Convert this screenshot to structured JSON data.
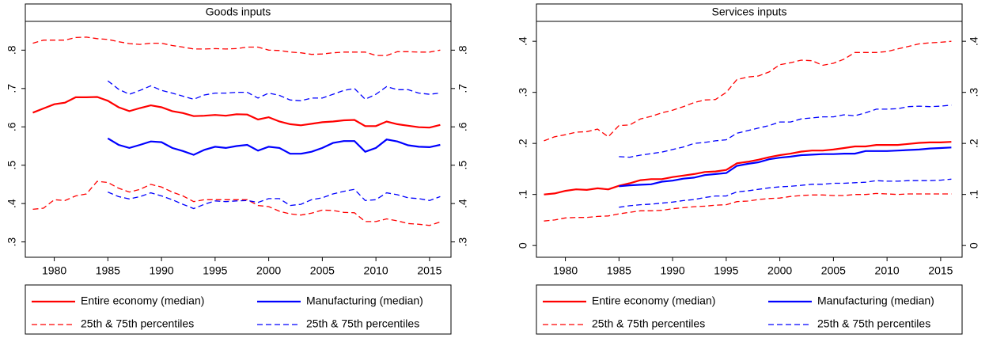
{
  "chart_data": [
    {
      "type": "line",
      "title": "Goods inputs",
      "x": [
        1978,
        1979,
        1980,
        1981,
        1982,
        1983,
        1984,
        1985,
        1986,
        1987,
        1988,
        1989,
        1990,
        1991,
        1992,
        1993,
        1994,
        1995,
        1996,
        1997,
        1998,
        1999,
        2000,
        2001,
        2002,
        2003,
        2004,
        2005,
        2006,
        2007,
        2008,
        2009,
        2010,
        2011,
        2012,
        2013,
        2014,
        2015,
        2016
      ],
      "xlim": [
        1977.3,
        2017
      ],
      "xticks": [
        1980,
        1985,
        1990,
        1995,
        2000,
        2005,
        2010,
        2015
      ],
      "ylim": [
        0.26,
        0.875
      ],
      "yticks": [
        {
          "value": 0.3,
          "label": ".3"
        },
        {
          "value": 0.4,
          "label": ".4"
        },
        {
          "value": 0.5,
          "label": ".5"
        },
        {
          "value": 0.6,
          "label": ".6"
        },
        {
          "value": 0.7,
          "label": ".7"
        },
        {
          "value": 0.8,
          "label": ".8"
        }
      ],
      "series": [
        {
          "name": "Entire economy (median)",
          "color": "#ff0000",
          "values": [
            0.637,
            0.648,
            0.659,
            0.663,
            0.677,
            0.677,
            0.678,
            0.668,
            0.651,
            0.641,
            0.649,
            0.656,
            0.651,
            0.641,
            0.636,
            0.628,
            0.629,
            0.631,
            0.629,
            0.633,
            0.632,
            0.619,
            0.625,
            0.614,
            0.607,
            0.604,
            0.608,
            0.612,
            0.614,
            0.617,
            0.618,
            0.602,
            0.602,
            0.614,
            0.607,
            0.603,
            0.599,
            0.598,
            0.605
          ]
        },
        {
          "name": "Manufacturing (median)",
          "color": "#0000ff",
          "values": [
            null,
            null,
            null,
            null,
            null,
            null,
            null,
            0.57,
            0.553,
            0.545,
            0.553,
            0.562,
            0.56,
            0.545,
            0.537,
            0.527,
            0.54,
            0.548,
            0.545,
            0.55,
            0.553,
            0.538,
            0.548,
            0.545,
            0.53,
            0.53,
            0.535,
            0.545,
            0.558,
            0.563,
            0.563,
            0.535,
            0.545,
            0.567,
            0.562,
            0.552,
            0.548,
            0.547,
            0.553
          ]
        },
        {
          "name": "25th & 75th percentiles",
          "color": "#ff0000",
          "dashed": true,
          "values": [
            0.385,
            0.388,
            0.41,
            0.408,
            0.42,
            0.425,
            0.458,
            0.455,
            0.44,
            0.43,
            0.437,
            0.45,
            0.443,
            0.43,
            0.42,
            0.405,
            0.41,
            0.41,
            0.41,
            0.41,
            0.41,
            0.395,
            0.392,
            0.38,
            0.373,
            0.37,
            0.375,
            0.383,
            0.382,
            0.377,
            0.376,
            0.353,
            0.353,
            0.36,
            0.355,
            0.348,
            0.346,
            0.343,
            0.352
          ],
          "values_upper": [
            0.818,
            0.826,
            0.826,
            0.826,
            0.833,
            0.834,
            0.83,
            0.828,
            0.822,
            0.817,
            0.815,
            0.818,
            0.818,
            0.812,
            0.808,
            0.803,
            0.803,
            0.804,
            0.803,
            0.804,
            0.808,
            0.808,
            0.8,
            0.799,
            0.795,
            0.793,
            0.789,
            0.79,
            0.793,
            0.795,
            0.795,
            0.795,
            0.786,
            0.786,
            0.796,
            0.796,
            0.795,
            0.795,
            0.8
          ]
        },
        {
          "name": "25th & 75th percentiles",
          "color": "#0000ff",
          "dashed": true,
          "values": [
            null,
            null,
            null,
            null,
            null,
            null,
            null,
            0.43,
            0.418,
            0.412,
            0.418,
            0.428,
            0.42,
            0.41,
            0.398,
            0.387,
            0.398,
            0.407,
            0.405,
            0.407,
            0.408,
            0.403,
            0.413,
            0.413,
            0.395,
            0.398,
            0.41,
            0.415,
            0.425,
            0.432,
            0.437,
            0.408,
            0.41,
            0.428,
            0.423,
            0.415,
            0.413,
            0.408,
            0.418
          ],
          "values_upper": [
            null,
            null,
            null,
            null,
            null,
            null,
            null,
            0.72,
            0.698,
            0.685,
            0.695,
            0.707,
            0.695,
            0.688,
            0.68,
            0.672,
            0.683,
            0.688,
            0.688,
            0.69,
            0.69,
            0.675,
            0.688,
            0.682,
            0.67,
            0.668,
            0.675,
            0.675,
            0.685,
            0.695,
            0.7,
            0.672,
            0.685,
            0.705,
            0.697,
            0.697,
            0.688,
            0.685,
            0.688
          ]
        }
      ]
    },
    {
      "type": "line",
      "title": "Services inputs",
      "x": [
        1978,
        1979,
        1980,
        1981,
        1982,
        1983,
        1984,
        1985,
        1986,
        1987,
        1988,
        1989,
        1990,
        1991,
        1992,
        1993,
        1994,
        1995,
        1996,
        1997,
        1998,
        1999,
        2000,
        2001,
        2002,
        2003,
        2004,
        2005,
        2006,
        2007,
        2008,
        2009,
        2010,
        2011,
        2012,
        2013,
        2014,
        2015,
        2016
      ],
      "xlim": [
        1977.3,
        2017
      ],
      "xticks": [
        1980,
        1985,
        1990,
        1995,
        2000,
        2005,
        2010,
        2015
      ],
      "ylim": [
        -0.023,
        0.439
      ],
      "yticks": [
        0,
        {
          "value": 0.1,
          "label": ".1"
        },
        {
          "value": 0.2,
          "label": ".2"
        },
        {
          "value": 0.3,
          "label": ".3"
        },
        {
          "value": 0.4,
          "label": ".4"
        }
      ],
      "series": [
        {
          "name": "Entire economy (median)",
          "color": "#ff0000",
          "values": [
            0.1,
            0.102,
            0.107,
            0.11,
            0.109,
            0.112,
            0.11,
            0.117,
            0.122,
            0.128,
            0.13,
            0.13,
            0.134,
            0.137,
            0.14,
            0.144,
            0.145,
            0.148,
            0.161,
            0.164,
            0.168,
            0.173,
            0.177,
            0.18,
            0.184,
            0.186,
            0.186,
            0.188,
            0.191,
            0.194,
            0.194,
            0.197,
            0.197,
            0.197,
            0.199,
            0.201,
            0.202,
            0.202,
            0.203
          ]
        },
        {
          "name": "Manufacturing (median)",
          "color": "#0000ff",
          "values": [
            null,
            null,
            null,
            null,
            null,
            null,
            null,
            0.116,
            0.118,
            0.119,
            0.12,
            0.125,
            0.127,
            0.131,
            0.133,
            0.138,
            0.14,
            0.142,
            0.156,
            0.16,
            0.163,
            0.169,
            0.172,
            0.174,
            0.177,
            0.178,
            0.179,
            0.179,
            0.18,
            0.18,
            0.185,
            0.185,
            0.185,
            0.186,
            0.187,
            0.188,
            0.19,
            0.191,
            0.192
          ]
        },
        {
          "name": "25th & 75th percentiles",
          "color": "#ff0000",
          "dashed": true,
          "values": [
            0.048,
            0.05,
            0.054,
            0.055,
            0.055,
            0.057,
            0.058,
            0.062,
            0.065,
            0.068,
            0.068,
            0.069,
            0.072,
            0.074,
            0.076,
            0.077,
            0.079,
            0.08,
            0.086,
            0.087,
            0.09,
            0.092,
            0.093,
            0.096,
            0.098,
            0.099,
            0.099,
            0.098,
            0.098,
            0.1,
            0.1,
            0.102,
            0.101,
            0.1,
            0.101,
            0.101,
            0.101,
            0.101,
            0.101
          ],
          "values_upper": [
            0.205,
            0.213,
            0.217,
            0.222,
            0.223,
            0.228,
            0.213,
            0.235,
            0.236,
            0.248,
            0.253,
            0.26,
            0.265,
            0.272,
            0.28,
            0.285,
            0.286,
            0.3,
            0.325,
            0.33,
            0.332,
            0.34,
            0.354,
            0.358,
            0.363,
            0.362,
            0.353,
            0.357,
            0.365,
            0.378,
            0.378,
            0.378,
            0.38,
            0.385,
            0.39,
            0.395,
            0.397,
            0.398,
            0.4
          ]
        },
        {
          "name": "25th & 75th percentiles",
          "color": "#0000ff",
          "dashed": true,
          "values": [
            null,
            null,
            null,
            null,
            null,
            null,
            null,
            0.075,
            0.078,
            0.08,
            0.081,
            0.083,
            0.085,
            0.088,
            0.09,
            0.094,
            0.097,
            0.097,
            0.105,
            0.107,
            0.11,
            0.113,
            0.115,
            0.116,
            0.118,
            0.12,
            0.12,
            0.122,
            0.122,
            0.123,
            0.124,
            0.127,
            0.126,
            0.126,
            0.127,
            0.127,
            0.127,
            0.128,
            0.13
          ],
          "values_upper": [
            null,
            null,
            null,
            null,
            null,
            null,
            null,
            0.174,
            0.173,
            0.177,
            0.18,
            0.183,
            0.188,
            0.193,
            0.2,
            0.202,
            0.205,
            0.207,
            0.22,
            0.225,
            0.23,
            0.235,
            0.242,
            0.242,
            0.248,
            0.25,
            0.252,
            0.252,
            0.256,
            0.254,
            0.26,
            0.267,
            0.267,
            0.268,
            0.272,
            0.273,
            0.272,
            0.273,
            0.275
          ]
        }
      ]
    }
  ]
}
